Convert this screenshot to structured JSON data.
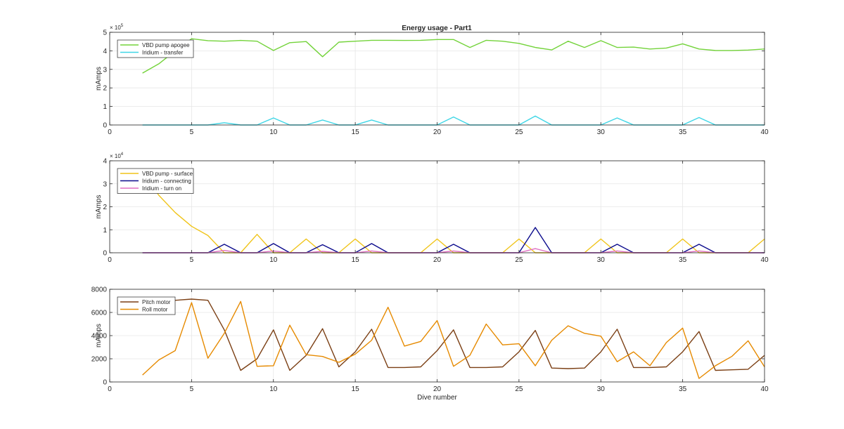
{
  "figure_title": "Energy usage - Part1",
  "chart_data": [
    {
      "type": "line",
      "title": "Energy usage - Part1",
      "xlabel": "",
      "ylabel": "mAmps",
      "xlim": [
        0,
        40
      ],
      "ylim": [
        0,
        500000
      ],
      "y_exponent": "× 10",
      "y_exponent_power": "5",
      "xticks": [
        0,
        5,
        10,
        15,
        20,
        25,
        30,
        35,
        40
      ],
      "yticks": [
        0,
        100000,
        200000,
        300000,
        400000,
        500000
      ],
      "ytick_labels": [
        "0",
        "1",
        "2",
        "3",
        "4",
        "5"
      ],
      "grid": true,
      "legend_position": "top-left",
      "x": [
        2,
        3,
        4,
        5,
        6,
        7,
        8,
        9,
        10,
        11,
        12,
        13,
        14,
        15,
        16,
        17,
        18,
        19,
        20,
        21,
        22,
        23,
        24,
        25,
        26,
        27,
        28,
        29,
        30,
        31,
        32,
        33,
        34,
        35,
        36,
        37,
        38,
        39,
        40
      ],
      "series": [
        {
          "name": "VBD pump apogee",
          "color": "#73d33a",
          "values": [
            280000,
            330000,
            400000,
            465000,
            455000,
            452000,
            456000,
            452000,
            402000,
            444000,
            450000,
            368000,
            447000,
            452000,
            457000,
            457000,
            456000,
            457000,
            461000,
            461000,
            418000,
            457000,
            452000,
            440000,
            418000,
            405000,
            452000,
            418000,
            455000,
            418000,
            420000,
            410000,
            415000,
            438000,
            410000,
            402000,
            402000,
            404000,
            410000
          ]
        },
        {
          "name": "Iridium - transfer",
          "color": "#3fd6e6",
          "values": [
            0,
            0,
            0,
            0,
            0,
            12000,
            0,
            0,
            38000,
            0,
            0,
            27000,
            0,
            0,
            27000,
            0,
            0,
            0,
            0,
            43000,
            0,
            0,
            0,
            0,
            48000,
            0,
            0,
            0,
            0,
            38000,
            0,
            0,
            0,
            0,
            40000,
            0,
            0,
            0,
            0
          ]
        }
      ]
    },
    {
      "type": "line",
      "xlabel": "",
      "ylabel": "mAmps",
      "xlim": [
        0,
        40
      ],
      "ylim": [
        0,
        40000
      ],
      "y_exponent": "× 10",
      "y_exponent_power": "4",
      "xticks": [
        0,
        5,
        10,
        15,
        20,
        25,
        30,
        35,
        40
      ],
      "yticks": [
        0,
        10000,
        20000,
        30000,
        40000
      ],
      "ytick_labels": [
        "0",
        "1",
        "2",
        "3",
        "4"
      ],
      "grid": true,
      "legend_position": "top-left",
      "x": [
        2,
        3,
        4,
        5,
        6,
        7,
        8,
        9,
        10,
        11,
        12,
        13,
        14,
        15,
        16,
        17,
        18,
        19,
        20,
        21,
        22,
        23,
        24,
        25,
        26,
        27,
        28,
        29,
        30,
        31,
        32,
        33,
        34,
        35,
        36,
        37,
        38,
        39,
        40
      ],
      "series": [
        {
          "name": "VBD pump - surface",
          "color": "#f0c419",
          "values": [
            35000,
            25000,
            17500,
            11500,
            7500,
            0,
            0,
            8000,
            0,
            0,
            6000,
            0,
            0,
            6000,
            0,
            0,
            0,
            0,
            6000,
            0,
            0,
            0,
            0,
            6000,
            0,
            0,
            0,
            0,
            6000,
            0,
            0,
            0,
            0,
            6000,
            0,
            0,
            0,
            0,
            6000
          ]
        },
        {
          "name": "Iridium - connecting",
          "color": "#0a0a8c",
          "values": [
            0,
            0,
            0,
            0,
            0,
            3700,
            0,
            0,
            4000,
            0,
            0,
            3500,
            0,
            0,
            4000,
            0,
            0,
            0,
            0,
            3700,
            0,
            0,
            0,
            0,
            11000,
            0,
            0,
            0,
            0,
            3700,
            0,
            0,
            0,
            0,
            3700,
            0,
            0,
            0,
            0
          ]
        },
        {
          "name": "Iridium - turn on",
          "color": "#e06ec2",
          "values": [
            0,
            0,
            0,
            0,
            0,
            1000,
            0,
            0,
            800,
            0,
            0,
            600,
            0,
            0,
            800,
            0,
            0,
            0,
            0,
            800,
            0,
            0,
            0,
            0,
            1800,
            0,
            0,
            0,
            0,
            800,
            0,
            0,
            0,
            0,
            800,
            0,
            0,
            0,
            0
          ]
        }
      ]
    },
    {
      "type": "line",
      "xlabel": "Dive number",
      "ylabel": "mAmps",
      "xlim": [
        0,
        40
      ],
      "ylim": [
        0,
        8000
      ],
      "xticks": [
        0,
        5,
        10,
        15,
        20,
        25,
        30,
        35,
        40
      ],
      "yticks": [
        0,
        2000,
        4000,
        6000,
        8000
      ],
      "ytick_labels": [
        "0",
        "2000",
        "4000",
        "6000",
        "8000"
      ],
      "grid": true,
      "legend_position": "top-left",
      "x": [
        2,
        3,
        4,
        5,
        6,
        7,
        8,
        9,
        10,
        11,
        12,
        13,
        14,
        15,
        16,
        17,
        18,
        19,
        20,
        21,
        22,
        23,
        24,
        25,
        26,
        27,
        28,
        29,
        30,
        31,
        32,
        33,
        34,
        35,
        36,
        37,
        38,
        39,
        40
      ],
      "series": [
        {
          "name": "Pitch motor",
          "color": "#7b3f14",
          "values": [
            7000,
            7000,
            7050,
            7150,
            7050,
            4500,
            1000,
            2000,
            4500,
            1000,
            2300,
            4600,
            1300,
            2600,
            4550,
            1250,
            1250,
            1300,
            2700,
            4500,
            1250,
            1250,
            1300,
            2600,
            4450,
            1200,
            1150,
            1200,
            2600,
            4550,
            1250,
            1250,
            1300,
            2600,
            4350,
            1000,
            1050,
            1100,
            2300
          ]
        },
        {
          "name": "Roll motor",
          "color": "#e68a00",
          "values": [
            600,
            1900,
            2700,
            6850,
            2050,
            4200,
            6950,
            1350,
            1400,
            4900,
            2350,
            2200,
            1700,
            2400,
            3600,
            6450,
            3100,
            3500,
            5300,
            1350,
            2300,
            5000,
            3200,
            3300,
            1400,
            3600,
            4850,
            4200,
            3950,
            1750,
            2600,
            1400,
            3400,
            4650,
            300,
            1400,
            2200,
            3550,
            1300
          ]
        }
      ]
    }
  ]
}
